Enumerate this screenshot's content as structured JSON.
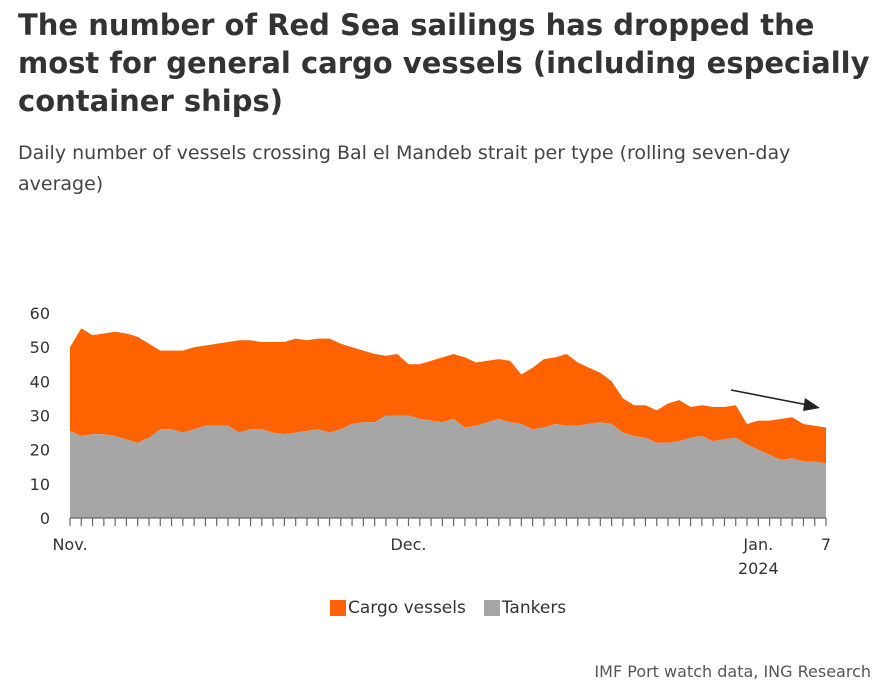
{
  "title": "The number of Red Sea sailings has dropped the most for general cargo vessels (including especially container ships)",
  "subtitle": "Daily number of vessels crossing Bal el Mandeb strait per type (rolling seven-day average)",
  "source": "IMF Port watch data, ING Research",
  "chart_data": {
    "type": "area",
    "stacked": true,
    "ylim": [
      0,
      60
    ],
    "yticks": [
      0,
      10,
      20,
      30,
      40,
      50,
      60
    ],
    "x_tick_labels": [
      {
        "day": 0,
        "label": "Nov."
      },
      {
        "day": 30,
        "label": "Dec."
      },
      {
        "day": 61,
        "label": "Jan."
      },
      {
        "day": 67,
        "label": "7"
      }
    ],
    "x_sub_label": {
      "day": 61,
      "label": "2024"
    },
    "x": [
      "2023-11-01",
      "2023-11-02",
      "2023-11-03",
      "2023-11-04",
      "2023-11-05",
      "2023-11-06",
      "2023-11-07",
      "2023-11-08",
      "2023-11-09",
      "2023-11-10",
      "2023-11-11",
      "2023-11-12",
      "2023-11-13",
      "2023-11-14",
      "2023-11-15",
      "2023-11-16",
      "2023-11-17",
      "2023-11-18",
      "2023-11-19",
      "2023-11-20",
      "2023-11-21",
      "2023-11-22",
      "2023-11-23",
      "2023-11-24",
      "2023-11-25",
      "2023-11-26",
      "2023-11-27",
      "2023-11-28",
      "2023-11-29",
      "2023-11-30",
      "2023-12-01",
      "2023-12-02",
      "2023-12-03",
      "2023-12-04",
      "2023-12-05",
      "2023-12-06",
      "2023-12-07",
      "2023-12-08",
      "2023-12-09",
      "2023-12-10",
      "2023-12-11",
      "2023-12-12",
      "2023-12-13",
      "2023-12-14",
      "2023-12-15",
      "2023-12-16",
      "2023-12-17",
      "2023-12-18",
      "2023-12-19",
      "2023-12-20",
      "2023-12-21",
      "2023-12-22",
      "2023-12-23",
      "2023-12-24",
      "2023-12-25",
      "2023-12-26",
      "2023-12-27",
      "2023-12-28",
      "2023-12-29",
      "2023-12-30",
      "2023-12-31",
      "2024-01-01",
      "2024-01-02",
      "2024-01-03",
      "2024-01-04",
      "2024-01-05",
      "2024-01-06",
      "2024-01-07"
    ],
    "series": [
      {
        "name": "Tankers",
        "color": "#a6a6a6",
        "values": [
          25.5,
          24,
          24.5,
          24.5,
          24,
          23,
          22,
          23.5,
          26,
          26,
          25,
          26,
          27,
          27,
          27,
          25,
          26,
          26,
          25,
          24.5,
          25,
          25.5,
          26,
          25,
          26,
          27.5,
          28,
          28,
          30,
          30,
          30,
          29,
          28.5,
          28,
          29,
          26.5,
          27,
          28,
          29,
          28,
          27.5,
          26,
          26.5,
          27.5,
          27,
          27,
          27.5,
          28,
          27.5,
          25,
          24,
          23.5,
          22,
          22,
          22.5,
          23.5,
          24,
          22.5,
          23,
          23.5,
          21.5,
          20,
          18.5,
          17,
          17.5,
          16.5,
          16.5,
          16
        ]
      },
      {
        "name": "Cargo vessels",
        "color": "#ff6200",
        "values": [
          24.5,
          31.5,
          29,
          29.5,
          30.5,
          31,
          31,
          27.5,
          23,
          23,
          24,
          24,
          23.5,
          24,
          24.5,
          27,
          26,
          25.5,
          26.5,
          27,
          27.5,
          26.5,
          26.5,
          27.5,
          25,
          22.5,
          21,
          20,
          17.5,
          18,
          15,
          16,
          17.5,
          19,
          19,
          20.5,
          18.5,
          18,
          17.5,
          18,
          14.5,
          18,
          20,
          19.5,
          21,
          18.5,
          16.5,
          14.5,
          12.5,
          10,
          9,
          9.5,
          9.5,
          11.5,
          12,
          9,
          9,
          10,
          9.5,
          9.5,
          6,
          8.5,
          10,
          12,
          12,
          11,
          10.5,
          10.5
        ]
      }
    ],
    "legend": [
      "Cargo vessels",
      "Tankers"
    ],
    "annotation": "downward arrow"
  }
}
